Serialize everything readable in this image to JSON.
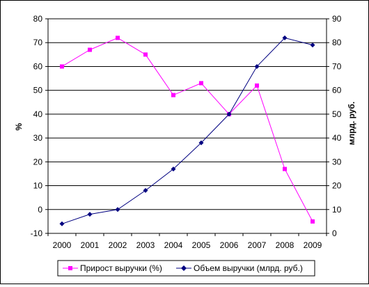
{
  "chart_data": {
    "type": "line",
    "categories": [
      "2000",
      "2001",
      "2002",
      "2003",
      "2004",
      "2005",
      "2006",
      "2007",
      "2008",
      "2009"
    ],
    "y_left": {
      "label": "%",
      "range": [
        -10,
        80
      ],
      "ticks": [
        -10,
        0,
        10,
        20,
        30,
        40,
        50,
        60,
        70,
        80
      ],
      "tick_labels": [
        "-10",
        "0",
        "10",
        "20",
        "30",
        "40",
        "50",
        "60",
        "70",
        "80"
      ]
    },
    "y_right": {
      "label": "млрд. руб.",
      "range": [
        0,
        90
      ],
      "ticks": [
        0,
        10,
        20,
        30,
        40,
        50,
        60,
        70,
        80,
        90
      ],
      "tick_labels": [
        "0",
        "10",
        "20",
        "30",
        "40",
        "50",
        "60",
        "70",
        "80",
        "90"
      ]
    },
    "grid": "horizontal",
    "legend_position": "bottom",
    "series": [
      {
        "name": "Прирост выручки (%)",
        "axis": "left",
        "color": "#ff00ff",
        "marker": "square",
        "values": [
          60,
          67,
          72,
          65,
          48,
          53,
          40,
          52,
          17,
          -5
        ]
      },
      {
        "name": "Объем выручки (млрд. руб.)",
        "axis": "right",
        "color": "#000080",
        "marker": "diamond",
        "values": [
          4,
          8,
          10,
          18,
          27,
          38,
          50,
          70,
          82,
          79
        ]
      }
    ]
  }
}
